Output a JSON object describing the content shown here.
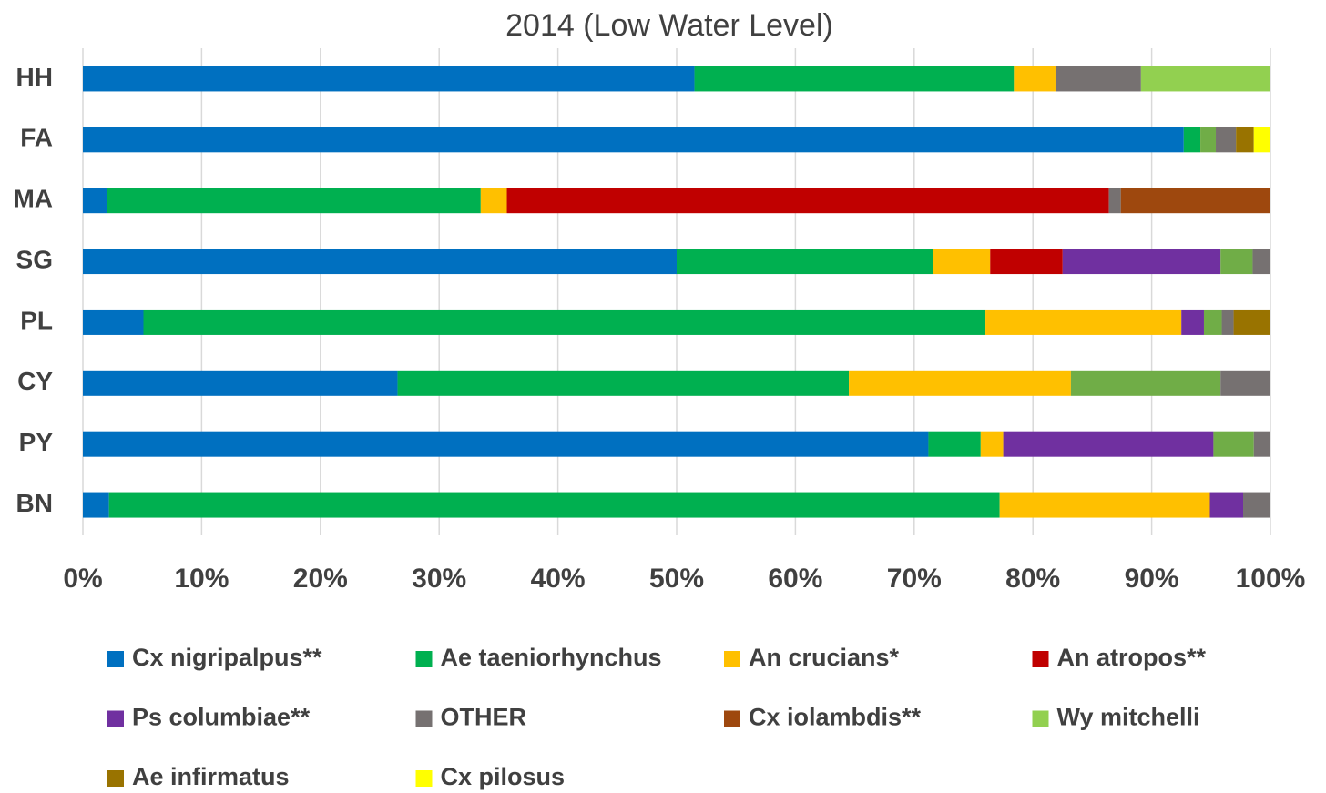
{
  "chart_data": {
    "type": "stacked_bar_horizontal",
    "title": "2014 (Low Water Level)",
    "categories": [
      "HH",
      "FA",
      "MA",
      "SG",
      "PL",
      "CY",
      "PY",
      "BN"
    ],
    "series": [
      {
        "name": "Cx nigripalpus**",
        "color": "#0070c0",
        "values": [
          51.5,
          92.7,
          2.0,
          50.0,
          5.1,
          26.5,
          71.2,
          2.2
        ]
      },
      {
        "name": "Ae taeniorhynchus",
        "color": "#00b050",
        "values": [
          26.9,
          1.4,
          31.5,
          21.6,
          70.9,
          38.0,
          4.4,
          75.0
        ]
      },
      {
        "name": "An crucians*",
        "color": "#ffc000",
        "values": [
          3.5,
          0,
          2.2,
          4.8,
          16.5,
          18.7,
          1.9,
          17.7
        ]
      },
      {
        "name": "An atropos**",
        "color": "#c00000",
        "values": [
          0,
          0,
          50.7,
          6.1,
          0,
          0,
          0,
          0
        ]
      },
      {
        "name": "Ps columbiae**",
        "color": "#7030a0",
        "values": [
          0,
          0,
          0,
          13.3,
          1.9,
          0,
          17.7,
          2.8
        ]
      },
      {
        "name": null,
        "color": "#70ad47",
        "values": [
          0,
          1.3,
          0,
          2.7,
          1.5,
          12.6,
          3.4,
          0
        ]
      },
      {
        "name": "OTHER",
        "color": "#767171",
        "values": [
          7.2,
          1.7,
          1.0,
          1.5,
          1.0,
          4.2,
          1.4,
          2.3
        ]
      },
      {
        "name": "Cx iolambdis**",
        "color": "#9e480e",
        "values": [
          0,
          0,
          12.6,
          0,
          0,
          0,
          0,
          0
        ]
      },
      {
        "name": "Wy mitchelli",
        "color": "#92d050",
        "values": [
          10.9,
          0,
          0,
          0,
          0,
          0,
          0,
          0
        ]
      },
      {
        "name": "Ae infirmatus",
        "color": "#997300",
        "values": [
          0,
          1.5,
          0,
          0,
          3.1,
          0,
          0,
          0
        ]
      },
      {
        "name": "Cx pilosus",
        "color": "#ffff00",
        "values": [
          0,
          1.4,
          0,
          0,
          0,
          0,
          0,
          0
        ]
      }
    ],
    "xlim": [
      0,
      100
    ],
    "xticks": [
      {
        "value": 0,
        "label": "0%"
      },
      {
        "value": 10,
        "label": "10%"
      },
      {
        "value": 20,
        "label": "20%"
      },
      {
        "value": 30,
        "label": "30%"
      },
      {
        "value": 40,
        "label": "40%"
      },
      {
        "value": 50,
        "label": "50%"
      },
      {
        "value": 60,
        "label": "60%"
      },
      {
        "value": 70,
        "label": "70%"
      },
      {
        "value": 80,
        "label": "80%"
      },
      {
        "value": 90,
        "label": "90%"
      },
      {
        "value": 100,
        "label": "100%"
      }
    ],
    "grid": true,
    "legend": "bottom"
  }
}
